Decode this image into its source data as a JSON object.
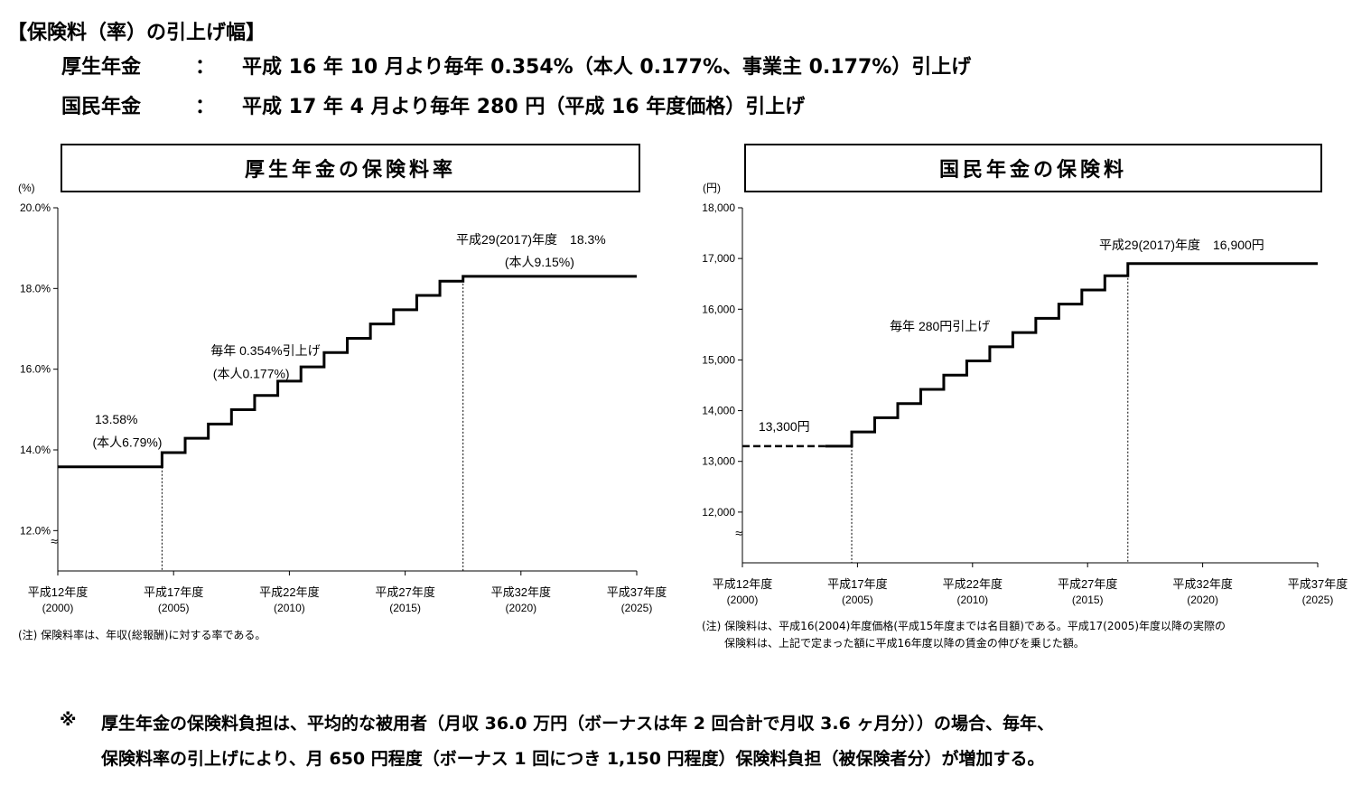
{
  "header": {
    "title": "【保険料（率）の引上げ幅】",
    "rows": [
      {
        "label": "厚生年金",
        "colon": "：",
        "text": "平成 16 年 10 月より毎年 0.354%（本人 0.177%、事業主 0.177%）引上げ"
      },
      {
        "label": "国民年金",
        "colon": "：",
        "text": "平成 17 年  4 月より毎年 280 円（平成 16 年度価格）引上げ"
      }
    ]
  },
  "chart_data": [
    {
      "type": "line",
      "title": "厚生年金の保険料率",
      "unit": "(%)",
      "ylim": [
        11.0,
        20.0
      ],
      "yticks": [
        "12.0%",
        "14.0%",
        "16.0%",
        "18.0%",
        "20.0%"
      ],
      "ytick_values": [
        12,
        14,
        16,
        18,
        20
      ],
      "axis_break": "≈",
      "xlim": [
        2000,
        2025
      ],
      "xticks": [
        {
          "year": 2000,
          "label1": "平成12年度",
          "label2": "(2000)"
        },
        {
          "year": 2005,
          "label1": "平成17年度",
          "label2": "(2005)"
        },
        {
          "year": 2010,
          "label1": "平成22年度",
          "label2": "(2010)"
        },
        {
          "year": 2015,
          "label1": "平成27年度",
          "label2": "(2015)"
        },
        {
          "year": 2020,
          "label1": "平成32年度",
          "label2": "(2020)"
        },
        {
          "year": 2025,
          "label1": "平成37年度",
          "label2": "(2025)"
        }
      ],
      "series": [
        {
          "values": [
            [
              2000,
              13.58
            ],
            [
              2004.5,
              13.58
            ],
            [
              2004.5,
              13.934
            ],
            [
              2005.5,
              13.934
            ],
            [
              2005.5,
              14.288
            ],
            [
              2006.5,
              14.288
            ],
            [
              2006.5,
              14.642
            ],
            [
              2007.5,
              14.642
            ],
            [
              2007.5,
              14.996
            ],
            [
              2008.5,
              14.996
            ],
            [
              2008.5,
              15.35
            ],
            [
              2009.5,
              15.35
            ],
            [
              2009.5,
              15.704
            ],
            [
              2010.5,
              15.704
            ],
            [
              2010.5,
              16.058
            ],
            [
              2011.5,
              16.058
            ],
            [
              2011.5,
              16.412
            ],
            [
              2012.5,
              16.412
            ],
            [
              2012.5,
              16.766
            ],
            [
              2013.5,
              16.766
            ],
            [
              2013.5,
              17.12
            ],
            [
              2014.5,
              17.12
            ],
            [
              2014.5,
              17.474
            ],
            [
              2015.5,
              17.474
            ],
            [
              2015.5,
              17.828
            ],
            [
              2016.5,
              17.828
            ],
            [
              2016.5,
              18.182
            ],
            [
              2017.5,
              18.182
            ],
            [
              2017.5,
              18.3
            ],
            [
              2025,
              18.3
            ]
          ]
        }
      ],
      "vlines": [
        {
          "x": 2004.5,
          "y": 13.58
        },
        {
          "x": 2017.5,
          "y": 18.3
        }
      ],
      "annotations": [
        {
          "text": "13.58%",
          "x": 2001.6,
          "y": 14.65
        },
        {
          "text": "(本人6.79%)",
          "x": 2001.5,
          "y": 14.08
        },
        {
          "text": "毎年 0.354%引上げ",
          "x": 2006.6,
          "y": 16.35
        },
        {
          "text": "(本人0.177%)",
          "x": 2006.7,
          "y": 15.78
        },
        {
          "text": "平成29(2017)年度　18.3%",
          "x": 2017.2,
          "y": 19.1
        },
        {
          "text": "(本人9.15%)",
          "x": 2019.3,
          "y": 18.55
        }
      ],
      "note": "(注) 保険料率は、年収(総報酬)に対する率である。"
    },
    {
      "type": "line",
      "title": "国民年金の保険料",
      "unit": "(円)",
      "ylim": [
        11000,
        18000
      ],
      "yticks": [
        "12,000",
        "13,000",
        "14,000",
        "15,000",
        "16,000",
        "17,000",
        "18,000"
      ],
      "ytick_values": [
        12000,
        13000,
        14000,
        15000,
        16000,
        17000,
        18000
      ],
      "axis_break": "≈",
      "xlim": [
        2000,
        2025
      ],
      "xticks": [
        {
          "year": 2000,
          "label1": "平成12年度",
          "label2": "(2000)"
        },
        {
          "year": 2005,
          "label1": "平成17年度",
          "label2": "(2005)"
        },
        {
          "year": 2010,
          "label1": "平成22年度",
          "label2": "(2010)"
        },
        {
          "year": 2015,
          "label1": "平成27年度",
          "label2": "(2015)"
        },
        {
          "year": 2020,
          "label1": "平成32年度",
          "label2": "(2020)"
        },
        {
          "year": 2025,
          "label1": "平成37年度",
          "label2": "(2025)"
        }
      ],
      "dashed_segment": [
        [
          2000,
          13300
        ],
        [
          2003.6,
          13300
        ]
      ],
      "series": [
        {
          "values": [
            [
              2003.6,
              13300
            ],
            [
              2004.75,
              13300
            ],
            [
              2004.75,
              13580
            ],
            [
              2005.75,
              13580
            ],
            [
              2005.75,
              13860
            ],
            [
              2006.75,
              13860
            ],
            [
              2006.75,
              14140
            ],
            [
              2007.75,
              14140
            ],
            [
              2007.75,
              14420
            ],
            [
              2008.75,
              14420
            ],
            [
              2008.75,
              14700
            ],
            [
              2009.75,
              14700
            ],
            [
              2009.75,
              14980
            ],
            [
              2010.75,
              14980
            ],
            [
              2010.75,
              15260
            ],
            [
              2011.75,
              15260
            ],
            [
              2011.75,
              15540
            ],
            [
              2012.75,
              15540
            ],
            [
              2012.75,
              15820
            ],
            [
              2013.75,
              15820
            ],
            [
              2013.75,
              16100
            ],
            [
              2014.75,
              16100
            ],
            [
              2014.75,
              16380
            ],
            [
              2015.75,
              16380
            ],
            [
              2015.75,
              16660
            ],
            [
              2016.75,
              16660
            ],
            [
              2016.75,
              16900
            ],
            [
              2025,
              16900
            ]
          ]
        }
      ],
      "vlines": [
        {
          "x": 2004.75,
          "y": 13300
        },
        {
          "x": 2016.75,
          "y": 16900
        }
      ],
      "annotations": [
        {
          "text": "13,300円",
          "x": 2000.7,
          "y": 13600
        },
        {
          "text": "毎年 280円引上げ",
          "x": 2006.4,
          "y": 15580
        },
        {
          "text": "平成29(2017)年度　16,900円",
          "x": 2015.5,
          "y": 17180
        }
      ],
      "note_lines": [
        "(注) 保険料は、平成16(2004)年度価格(平成15年度までは名目額)である。平成17(2005)年度以降の実際の",
        "保険料は、上記で定まった額に平成16年度以降の賃金の伸びを乗じた額。"
      ]
    }
  ],
  "footer": {
    "mark": "※",
    "lines": [
      "厚生年金の保険料負担は、平均的な被用者（月収 36.0 万円（ボーナスは年 2 回合計で月収 3.6 ヶ月分））の場合、毎年、",
      "保険料率の引上げにより、月 650 円程度（ボーナス 1 回につき 1,150 円程度）保険料負担（被保険者分）が増加する。"
    ]
  }
}
